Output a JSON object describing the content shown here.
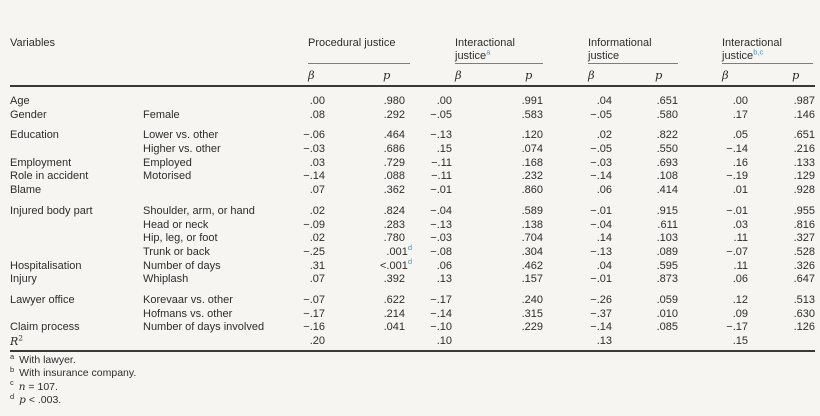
{
  "page": {
    "background": "#f6f5f2",
    "text_color": "#2e2d2b",
    "superscript_blue": "#4596cb"
  },
  "table": {
    "variables_header": "Variables",
    "beta_symbol": "β",
    "p_symbol": "p",
    "groups": [
      {
        "title": "Procedural justice",
        "sup": ""
      },
      {
        "title": "Interactional justice",
        "sup": "a"
      },
      {
        "title": "Informational justice",
        "sup": ""
      },
      {
        "title": "Interactional justice",
        "sup": "b,c"
      }
    ],
    "sections": [
      {
        "rows": [
          {
            "var": "Age",
            "sub": "",
            "cells": [
              ".00",
              ".980",
              ".00",
              ".991",
              ".04",
              ".651",
              ".00",
              ".987"
            ]
          },
          {
            "var": "Gender",
            "sub": "Female",
            "cells": [
              ".08",
              ".292",
              "−.05",
              ".583",
              "−.05",
              ".580",
              ".17",
              ".146"
            ]
          }
        ]
      },
      {
        "rows": [
          {
            "var": "Education",
            "sub": "Lower vs. other",
            "cells": [
              "−.06",
              ".464",
              "−.13",
              ".120",
              ".02",
              ".822",
              ".05",
              ".651"
            ]
          },
          {
            "var": "",
            "sub": "Higher vs. other",
            "cells": [
              "−.03",
              ".686",
              ".15",
              ".074",
              "−.05",
              ".550",
              "−.14",
              ".216"
            ]
          },
          {
            "var": "Employment",
            "sub": "Employed",
            "cells": [
              ".03",
              ".729",
              "−.11",
              ".168",
              "−.03",
              ".693",
              ".16",
              ".133"
            ]
          },
          {
            "var": "Role in accident",
            "sub": "Motorised",
            "cells": [
              "−.14",
              ".088",
              "−.11",
              ".232",
              "−.14",
              ".108",
              "−.19",
              ".129"
            ]
          },
          {
            "var": "Blame",
            "sub": "",
            "cells": [
              ".07",
              ".362",
              "−.01",
              ".860",
              ".06",
              ".414",
              ".01",
              ".928"
            ]
          }
        ]
      },
      {
        "rows": [
          {
            "var": "Injured body part",
            "sub": "Shoulder, arm, or hand",
            "cells": [
              ".02",
              ".824",
              "−.04",
              ".589",
              "−.01",
              ".915",
              "−.01",
              ".955"
            ]
          },
          {
            "var": "",
            "sub": "Head or neck",
            "cells": [
              "−.09",
              ".283",
              "−.13",
              ".138",
              "−.04",
              ".611",
              ".03",
              ".816"
            ]
          },
          {
            "var": "",
            "sub": "Hip, leg, or foot",
            "cells": [
              ".02",
              ".780",
              "−.03",
              ".704",
              ".14",
              ".103",
              ".11",
              ".327"
            ]
          },
          {
            "var": "",
            "sub": "Trunk or back",
            "cells": [
              "−.25",
              {
                "v": ".001",
                "sup": "d"
              },
              "−.08",
              ".304",
              "−.13",
              ".089",
              "−.07",
              ".528"
            ]
          },
          {
            "var": "Hospitalisation",
            "sub": "Number of days",
            "cells": [
              ".31",
              {
                "v": "<.001",
                "sup": "d"
              },
              ".06",
              ".462",
              ".04",
              ".595",
              ".11",
              ".326"
            ]
          },
          {
            "var": "Injury",
            "sub": "Whiplash",
            "cells": [
              ".07",
              ".392",
              ".13",
              ".157",
              "−.01",
              ".873",
              ".06",
              ".647"
            ]
          }
        ]
      },
      {
        "rows": [
          {
            "var": "Lawyer office",
            "sub": "Korevaar vs. other",
            "cells": [
              "−.07",
              ".622",
              "−.17",
              ".240",
              "−.26",
              ".059",
              ".12",
              ".513"
            ]
          },
          {
            "var": "",
            "sub": "Hofmans vs. other",
            "cells": [
              "−.17",
              ".214",
              "−.14",
              ".315",
              "−.37",
              ".010",
              ".09",
              ".630"
            ]
          },
          {
            "var": "Claim process",
            "sub": "Number of days involved",
            "cells": [
              "−.16",
              ".041",
              "−.10",
              ".229",
              "−.14",
              ".085",
              "−.17",
              ".126"
            ]
          },
          {
            "var": "R",
            "var_sup": "2",
            "var_math": true,
            "sub": "",
            "cells": [
              ".20",
              "",
              ".10",
              "",
              ".13",
              "",
              ".15",
              ""
            ]
          }
        ]
      }
    ]
  },
  "footnotes": [
    {
      "marker": "a",
      "lead_italic": "",
      "text": "With lawyer."
    },
    {
      "marker": "b",
      "lead_italic": "",
      "text": "With insurance company."
    },
    {
      "marker": "c",
      "lead_italic": "n",
      "text": " = 107."
    },
    {
      "marker": "d",
      "lead_italic": "p",
      "text": " < .003."
    }
  ]
}
